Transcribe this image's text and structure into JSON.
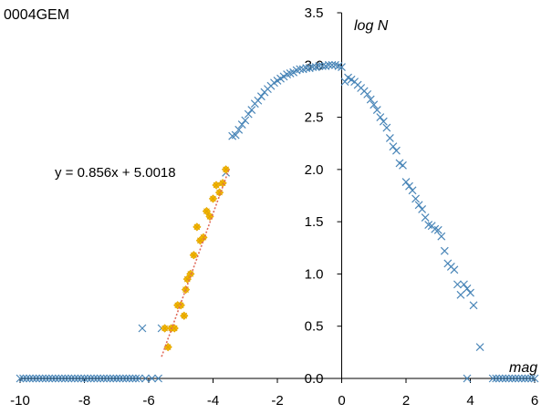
{
  "chart_data": {
    "type": "scatter",
    "title": "0004GEM",
    "xlabel": "mag",
    "ylabel": "log N",
    "xlim": [
      -10,
      6
    ],
    "ylim": [
      0,
      3.5
    ],
    "x_ticks": [
      "-10",
      "-8",
      "-6",
      "-4",
      "-2",
      "0",
      "2",
      "4",
      "6"
    ],
    "y_ticks": [
      "0.0",
      "0.5",
      "1.0",
      "1.5",
      "2.0",
      "2.5",
      "3.0",
      "3.5"
    ],
    "grid": false,
    "colors": {
      "all_stars": "#4a86b8",
      "fit_points": "#f5b800",
      "fit_line": "#e06a5a"
    },
    "annotation": "y = 0.856x + 5.0018",
    "fit": {
      "slope": 0.856,
      "intercept": 5.0018,
      "x_range": [
        -5.6,
        -3.5
      ]
    },
    "series": [
      {
        "marker": "x",
        "points": [
          [
            -6.2,
            0.48
          ],
          [
            -5.6,
            0.48
          ],
          [
            -3.6,
            1.97
          ],
          [
            -3.4,
            2.32
          ],
          [
            -3.3,
            2.33
          ],
          [
            -3.2,
            2.38
          ],
          [
            -3.1,
            2.43
          ],
          [
            -3.0,
            2.47
          ],
          [
            -2.9,
            2.53
          ],
          [
            -2.8,
            2.57
          ],
          [
            -2.7,
            2.63
          ],
          [
            -2.6,
            2.66
          ],
          [
            -2.5,
            2.7
          ],
          [
            -2.4,
            2.74
          ],
          [
            -2.3,
            2.77
          ],
          [
            -2.2,
            2.8
          ],
          [
            -2.1,
            2.83
          ],
          [
            -2.0,
            2.85
          ],
          [
            -1.9,
            2.87
          ],
          [
            -1.8,
            2.89
          ],
          [
            -1.7,
            2.91
          ],
          [
            -1.6,
            2.92
          ],
          [
            -1.5,
            2.93
          ],
          [
            -1.4,
            2.95
          ],
          [
            -1.3,
            2.96
          ],
          [
            -1.2,
            2.96
          ],
          [
            -1.1,
            2.97
          ],
          [
            -1.0,
            2.97
          ],
          [
            -0.9,
            2.98
          ],
          [
            -0.8,
            2.98
          ],
          [
            -0.7,
            2.99
          ],
          [
            -0.6,
            2.99
          ],
          [
            -0.5,
            2.99
          ],
          [
            -0.4,
            3.0
          ],
          [
            -0.3,
            3.0
          ],
          [
            -0.2,
            3.0
          ],
          [
            -0.1,
            2.99
          ],
          [
            0.0,
            2.98
          ],
          [
            0.1,
            2.84
          ],
          [
            0.2,
            2.88
          ],
          [
            0.3,
            2.86
          ],
          [
            0.4,
            2.84
          ],
          [
            0.5,
            2.81
          ],
          [
            0.6,
            2.78
          ],
          [
            0.7,
            2.75
          ],
          [
            0.8,
            2.72
          ],
          [
            0.9,
            2.67
          ],
          [
            1.0,
            2.62
          ],
          [
            1.1,
            2.57
          ],
          [
            1.2,
            2.5
          ],
          [
            1.3,
            2.46
          ],
          [
            1.4,
            2.4
          ],
          [
            1.5,
            2.3
          ],
          [
            1.6,
            2.22
          ],
          [
            1.7,
            2.18
          ],
          [
            1.8,
            2.06
          ],
          [
            1.9,
            2.04
          ],
          [
            2.0,
            1.88
          ],
          [
            2.1,
            1.84
          ],
          [
            2.2,
            1.8
          ],
          [
            2.3,
            1.72
          ],
          [
            2.4,
            1.66
          ],
          [
            2.5,
            1.62
          ],
          [
            2.6,
            1.54
          ],
          [
            2.7,
            1.47
          ],
          [
            2.8,
            1.46
          ],
          [
            2.9,
            1.43
          ],
          [
            3.0,
            1.42
          ],
          [
            3.1,
            1.36
          ],
          [
            3.2,
            1.22
          ],
          [
            3.3,
            1.1
          ],
          [
            3.4,
            1.07
          ],
          [
            3.5,
            1.04
          ],
          [
            3.6,
            0.9
          ],
          [
            3.7,
            0.8
          ],
          [
            3.8,
            0.9
          ],
          [
            3.9,
            0.86
          ],
          [
            4.0,
            0.82
          ],
          [
            4.1,
            0.7
          ],
          [
            4.3,
            0.3
          ]
        ]
      },
      {
        "marker": "diamond",
        "points": [
          [
            -5.5,
            0.48
          ],
          [
            -5.3,
            0.48
          ],
          [
            -5.4,
            0.3
          ],
          [
            -5.2,
            0.48
          ],
          [
            -5.0,
            0.7
          ],
          [
            -5.1,
            0.7
          ],
          [
            -4.9,
            0.6
          ],
          [
            -4.85,
            0.85
          ],
          [
            -4.8,
            0.95
          ],
          [
            -4.7,
            1.0
          ],
          [
            -4.6,
            1.18
          ],
          [
            -4.5,
            1.45
          ],
          [
            -4.4,
            1.32
          ],
          [
            -4.3,
            1.35
          ],
          [
            -4.2,
            1.6
          ],
          [
            -4.1,
            1.55
          ],
          [
            -4.0,
            1.72
          ],
          [
            -3.9,
            1.85
          ],
          [
            -3.8,
            1.78
          ],
          [
            -3.7,
            1.87
          ],
          [
            -3.6,
            2.0
          ]
        ]
      },
      {
        "marker": "x",
        "points": [
          [
            -10.0,
            0
          ],
          [
            -9.9,
            0
          ],
          [
            -9.8,
            0
          ],
          [
            -9.7,
            0
          ],
          [
            -9.6,
            0
          ],
          [
            -9.5,
            0
          ],
          [
            -9.4,
            0
          ],
          [
            -9.3,
            0
          ],
          [
            -9.2,
            0
          ],
          [
            -9.1,
            0
          ],
          [
            -9.0,
            0
          ],
          [
            -8.9,
            0
          ],
          [
            -8.8,
            0
          ],
          [
            -8.7,
            0
          ],
          [
            -8.6,
            0
          ],
          [
            -8.5,
            0
          ],
          [
            -8.4,
            0
          ],
          [
            -8.3,
            0
          ],
          [
            -8.2,
            0
          ],
          [
            -8.1,
            0
          ],
          [
            -8.0,
            0
          ],
          [
            -7.9,
            0
          ],
          [
            -7.8,
            0
          ],
          [
            -7.7,
            0
          ],
          [
            -7.6,
            0
          ],
          [
            -7.5,
            0
          ],
          [
            -7.4,
            0
          ],
          [
            -7.3,
            0
          ],
          [
            -7.2,
            0
          ],
          [
            -7.1,
            0
          ],
          [
            -7.0,
            0
          ],
          [
            -6.9,
            0
          ],
          [
            -6.8,
            0
          ],
          [
            -6.7,
            0
          ],
          [
            -6.6,
            0
          ],
          [
            -6.5,
            0
          ],
          [
            -6.4,
            0
          ],
          [
            -6.3,
            0
          ],
          [
            -6.1,
            0
          ],
          [
            -5.9,
            0
          ],
          [
            -5.7,
            0
          ],
          [
            3.9,
            0
          ],
          [
            4.7,
            0
          ],
          [
            4.8,
            0
          ],
          [
            4.9,
            0
          ],
          [
            5.0,
            0
          ],
          [
            5.1,
            0
          ],
          [
            5.2,
            0
          ],
          [
            5.3,
            0
          ],
          [
            5.4,
            0
          ],
          [
            5.5,
            0
          ],
          [
            5.6,
            0
          ],
          [
            5.7,
            0
          ],
          [
            5.8,
            0
          ],
          [
            5.9,
            0
          ],
          [
            6.0,
            0
          ]
        ]
      }
    ]
  }
}
